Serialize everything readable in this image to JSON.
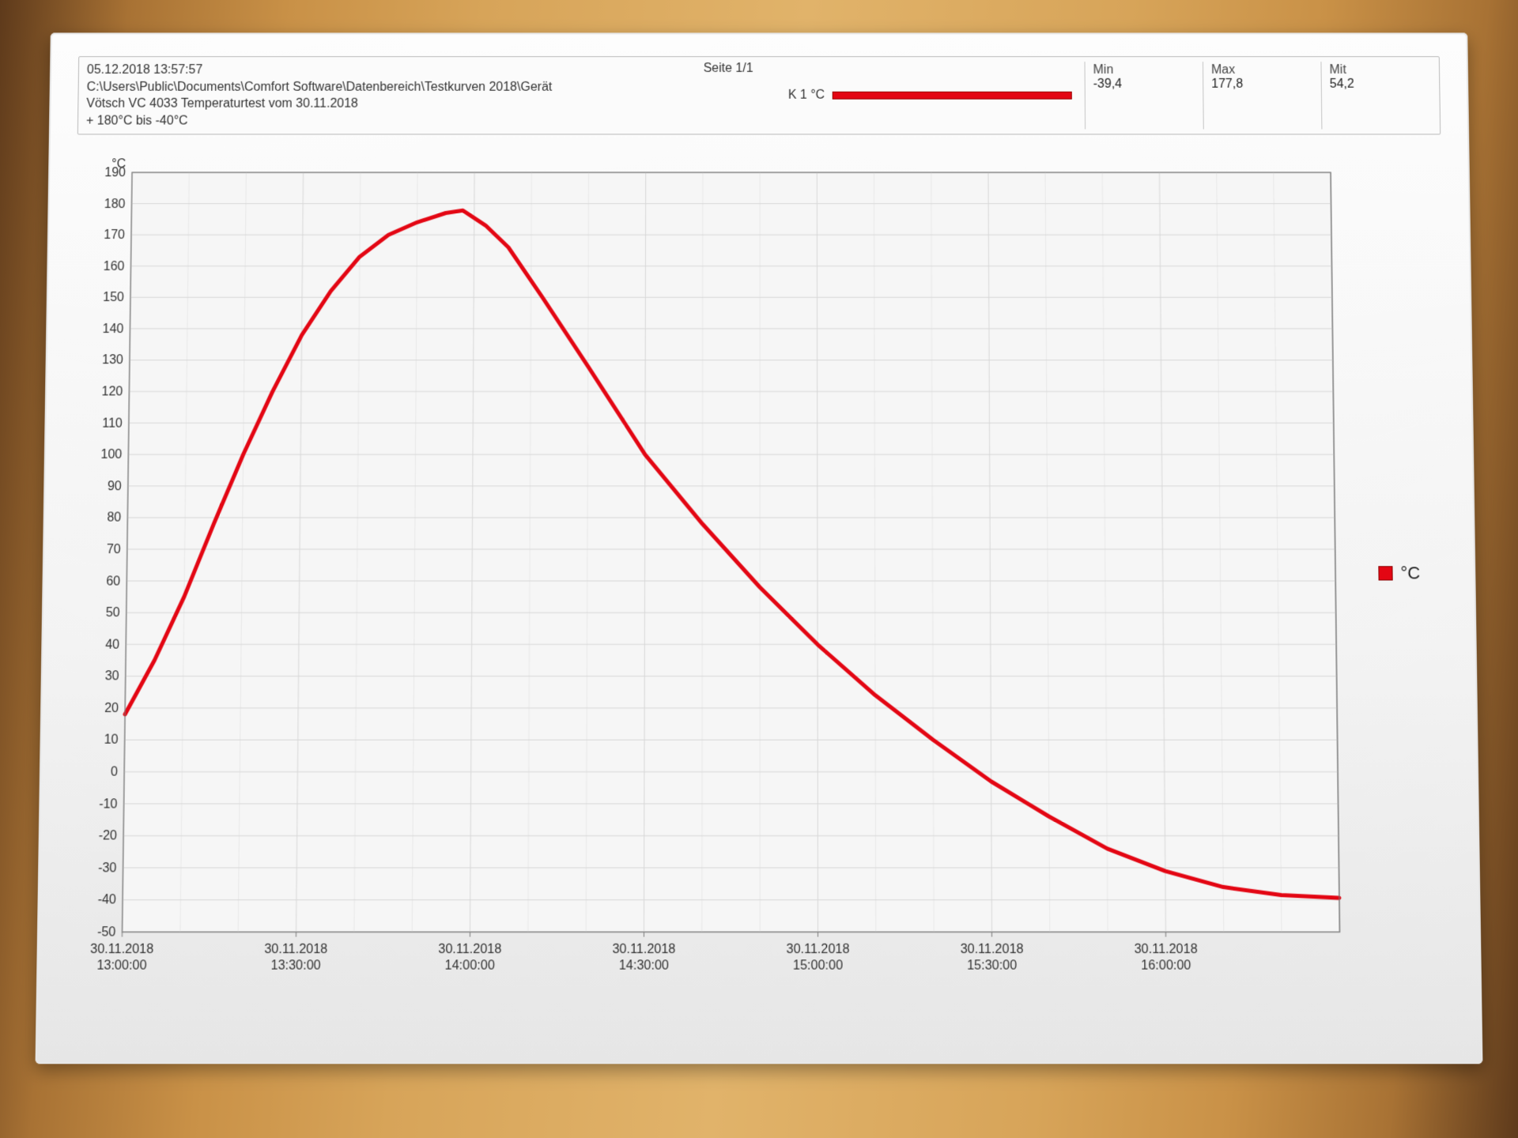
{
  "header": {
    "print_timestamp": "05.12.2018 13:57:57",
    "page_label": "Seite 1/1",
    "path_line": "C:\\Users\\Public\\Documents\\Comfort Software\\Datenbereich\\Testkurven 2018\\Gerät",
    "title_line": "Vötsch VC 4033 Temperaturtest vom 30.11.2018",
    "range_line": "+ 180°C bis -40°C",
    "channel_label": "K 1 °C",
    "channel_color": "#e30613",
    "stats": {
      "min_label": "Min",
      "min_value": "-39,4",
      "max_label": "Max",
      "max_value": "177,8",
      "avg_label": "Mit",
      "avg_value": "54,2"
    }
  },
  "legend": {
    "label": "°C",
    "color": "#e30613"
  },
  "chart": {
    "type": "line",
    "background_color": "#f6f6f6",
    "grid_color": "#d7d7d7",
    "grid_color_minor": "#e8e8e8",
    "axis_color": "#7a7a7a",
    "series_color": "#e30613",
    "series_width": 5,
    "y_unit_label": "°C",
    "y_top_label": "190",
    "ylim": [
      -50,
      190
    ],
    "ytick_step": 10,
    "x_minutes_range": [
      0,
      210
    ],
    "x_major_ticks_min": [
      0,
      30,
      60,
      90,
      120,
      150,
      180
    ],
    "x_tick_labels": [
      [
        "30.11.2018",
        "13:00:00"
      ],
      [
        "30.11.2018",
        "13:30:00"
      ],
      [
        "30.11.2018",
        "14:00:00"
      ],
      [
        "30.11.2018",
        "14:30:00"
      ],
      [
        "30.11.2018",
        "15:00:00"
      ],
      [
        "30.11.2018",
        "15:30:00"
      ],
      [
        "30.11.2018",
        "16:00:00"
      ]
    ],
    "label_fontsize": 16,
    "tick_fontsize": 16,
    "series": [
      {
        "x_min": 0,
        "y": 18
      },
      {
        "x_min": 5,
        "y": 35
      },
      {
        "x_min": 10,
        "y": 55
      },
      {
        "x_min": 15,
        "y": 78
      },
      {
        "x_min": 20,
        "y": 100
      },
      {
        "x_min": 25,
        "y": 120
      },
      {
        "x_min": 30,
        "y": 138
      },
      {
        "x_min": 35,
        "y": 152
      },
      {
        "x_min": 40,
        "y": 163
      },
      {
        "x_min": 45,
        "y": 170
      },
      {
        "x_min": 50,
        "y": 174
      },
      {
        "x_min": 55,
        "y": 177
      },
      {
        "x_min": 58,
        "y": 177.8
      },
      {
        "x_min": 62,
        "y": 173
      },
      {
        "x_min": 66,
        "y": 166
      },
      {
        "x_min": 72,
        "y": 150
      },
      {
        "x_min": 80,
        "y": 128
      },
      {
        "x_min": 90,
        "y": 100
      },
      {
        "x_min": 100,
        "y": 78
      },
      {
        "x_min": 110,
        "y": 58
      },
      {
        "x_min": 120,
        "y": 40
      },
      {
        "x_min": 130,
        "y": 24
      },
      {
        "x_min": 140,
        "y": 10
      },
      {
        "x_min": 150,
        "y": -3
      },
      {
        "x_min": 160,
        "y": -14
      },
      {
        "x_min": 170,
        "y": -24
      },
      {
        "x_min": 180,
        "y": -31
      },
      {
        "x_min": 190,
        "y": -36
      },
      {
        "x_min": 200,
        "y": -38.5
      },
      {
        "x_min": 210,
        "y": -39.4
      }
    ]
  }
}
